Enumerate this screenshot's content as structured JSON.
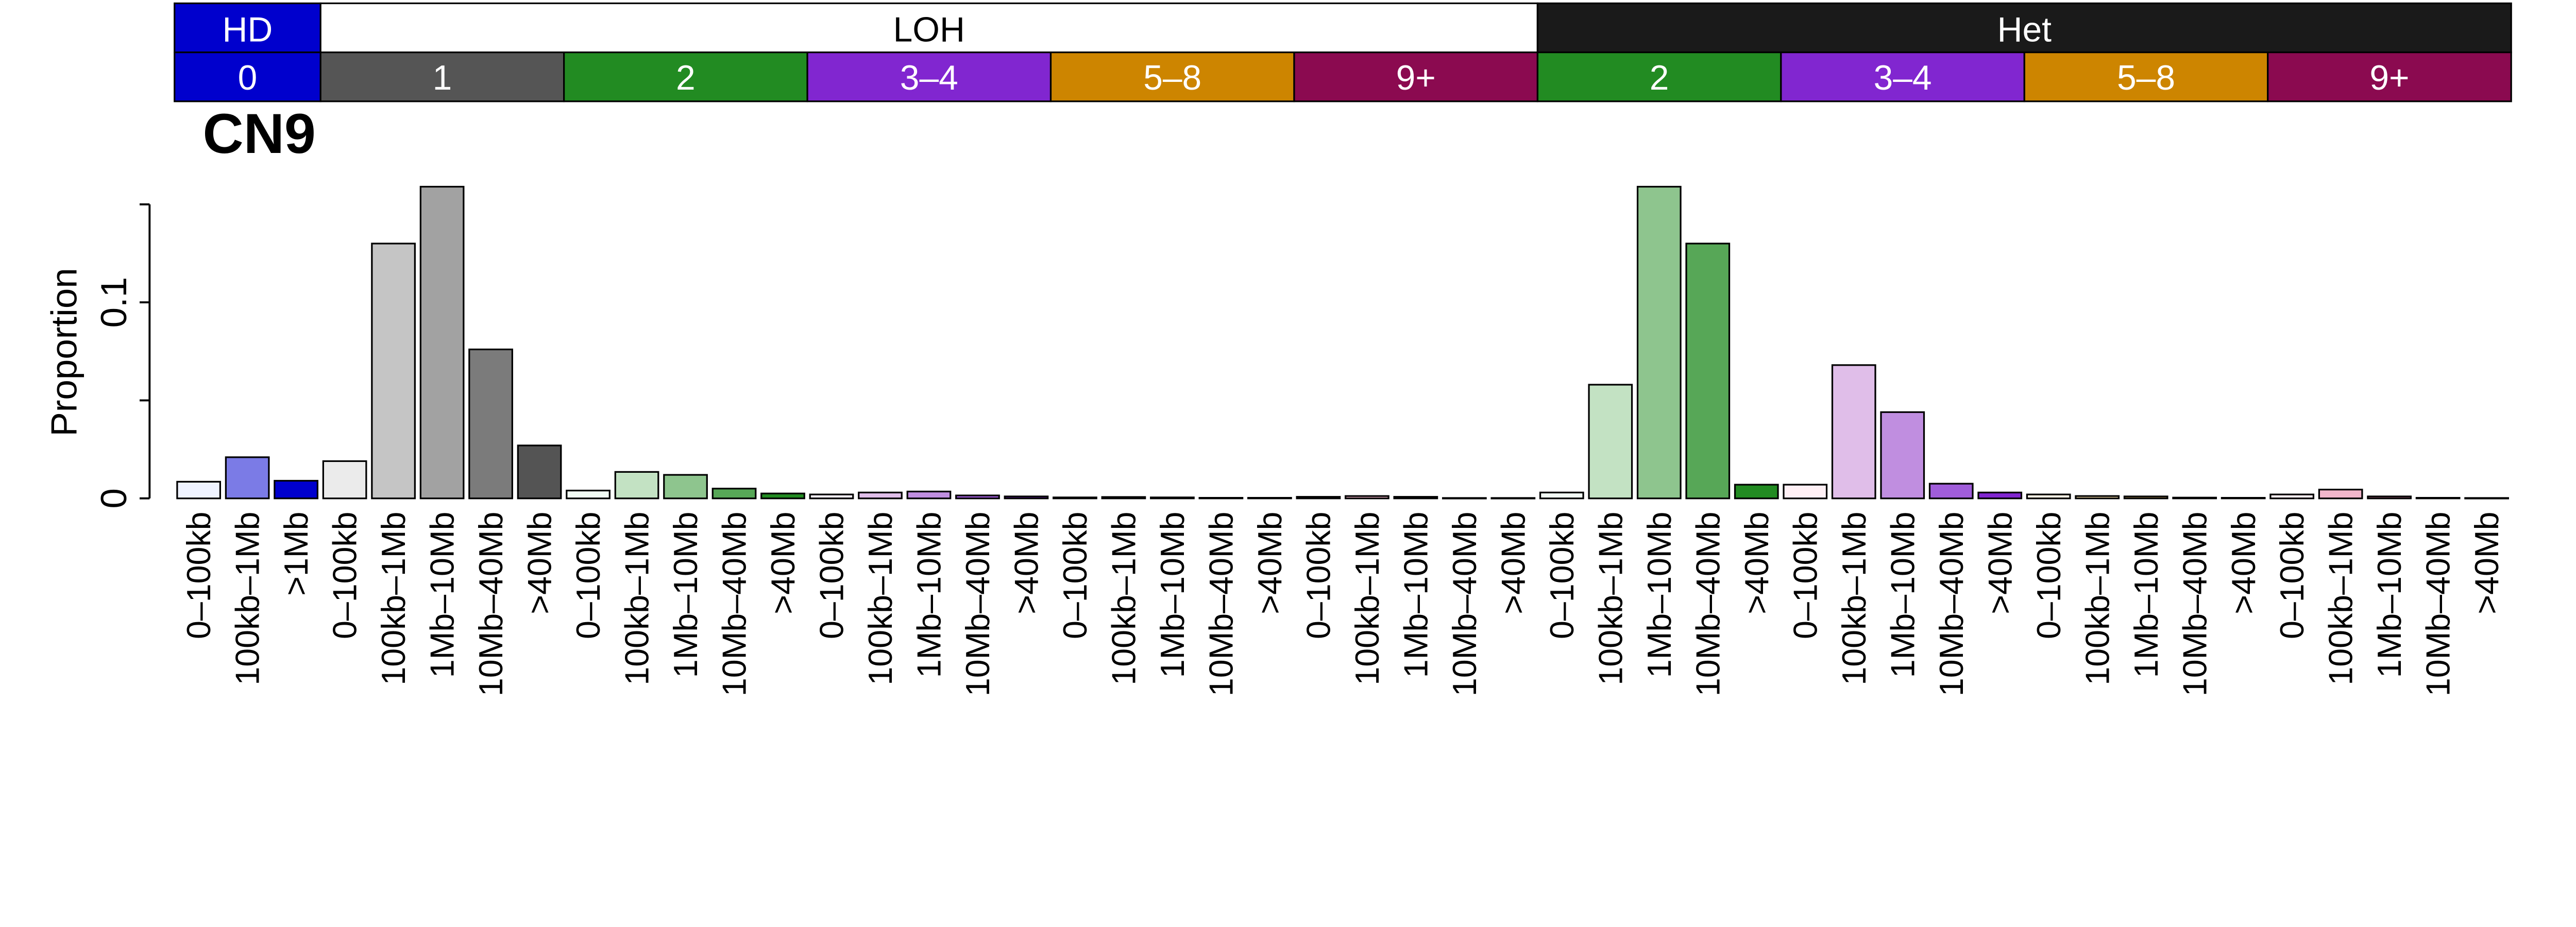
{
  "chart_data": {
    "type": "bar",
    "title": "CN9",
    "ylabel": "Proportion",
    "xlabel": "",
    "ylim": [
      0,
      0.15
    ],
    "yticks": [
      0,
      0.05,
      0.1,
      0.15
    ],
    "ytick_labels": [
      {
        "value": 0,
        "label": "0"
      },
      {
        "value": 0.1,
        "label": "0.1"
      }
    ],
    "grid": false,
    "top_groups": [
      {
        "label": "HD",
        "bars": 3,
        "color": "#0000CD",
        "text_color": "#FFFFFF"
      },
      {
        "label": "LOH",
        "bars": 25,
        "color": "#FFFFFF",
        "text_color": "#000000"
      },
      {
        "label": "Het",
        "bars": 20,
        "color": "#1A1A1A",
        "text_color": "#FFFFFF"
      }
    ],
    "cn_groups": [
      {
        "label": "0",
        "bars": 3,
        "color": "#0000CD"
      },
      {
        "label": "1",
        "bars": 5,
        "color": "#555555"
      },
      {
        "label": "2",
        "bars": 5,
        "color": "#228B22"
      },
      {
        "label": "3–4",
        "bars": 5,
        "color": "#8126D0"
      },
      {
        "label": "5–8",
        "bars": 5,
        "color": "#CD8500"
      },
      {
        "label": "9+",
        "bars": 5,
        "color": "#8B0A50"
      },
      {
        "label": "2",
        "bars": 5,
        "color": "#228B22"
      },
      {
        "label": "3–4",
        "bars": 5,
        "color": "#8126D0"
      },
      {
        "label": "5–8",
        "bars": 5,
        "color": "#CD8500"
      },
      {
        "label": "9+",
        "bars": 5,
        "color": "#8B0A50"
      }
    ],
    "categories": [
      "0–100kb",
      "100kb–1Mb",
      ">1Mb",
      "0–100kb",
      "100kb–1Mb",
      "1Mb–10Mb",
      "10Mb–40Mb",
      ">40Mb",
      "0–100kb",
      "100kb–1Mb",
      "1Mb–10Mb",
      "10Mb–40Mb",
      ">40Mb",
      "0–100kb",
      "100kb–1Mb",
      "1Mb–10Mb",
      "10Mb–40Mb",
      ">40Mb",
      "0–100kb",
      "100kb–1Mb",
      "1Mb–10Mb",
      "10Mb–40Mb",
      ">40Mb",
      "0–100kb",
      "100kb–1Mb",
      "1Mb–10Mb",
      "10Mb–40Mb",
      ">40Mb",
      "0–100kb",
      "100kb–1Mb",
      "1Mb–10Mb",
      "10Mb–40Mb",
      ">40Mb",
      "0–100kb",
      "100kb–1Mb",
      "1Mb–10Mb",
      "10Mb–40Mb",
      ">40Mb",
      "0–100kb",
      "100kb–1Mb",
      "1Mb–10Mb",
      "10Mb–40Mb",
      ">40Mb",
      "0–100kb",
      "100kb–1Mb",
      "1Mb–10Mb",
      "10Mb–40Mb",
      ">40Mb"
    ],
    "values": [
      0.0085,
      0.021,
      0.009,
      0.019,
      0.13,
      0.159,
      0.076,
      0.027,
      0.004,
      0.0135,
      0.012,
      0.005,
      0.0025,
      0.002,
      0.003,
      0.0035,
      0.0015,
      0.001,
      0.0005,
      0.0007,
      0.0005,
      0.0003,
      0.0003,
      0.0008,
      0.0012,
      0.0008,
      0.0002,
      0.0002,
      0.003,
      0.058,
      0.159,
      0.13,
      0.007,
      0.007,
      0.068,
      0.044,
      0.0075,
      0.003,
      0.002,
      0.0012,
      0.001,
      0.0004,
      0.0003,
      0.002,
      0.0045,
      0.001,
      0.0003,
      0.0002
    ],
    "bar_colors": [
      "#EFF3FF",
      "#7B7BE6",
      "#0000CD",
      "#EBEBEB",
      "#C5C5C5",
      "#A2A2A2",
      "#7B7B7B",
      "#545454",
      "#F2FCF4",
      "#C3E2C3",
      "#8EC58E",
      "#57A757",
      "#228B22",
      "#F6EEFA",
      "#E0BEE9",
      "#C08EE0",
      "#A05DDA",
      "#8126D0",
      "#FFF6E6",
      "#F5DCAA",
      "#E8BF70",
      "#DBA23A",
      "#CD8500",
      "#FFF0F5",
      "#F2B6CB",
      "#D27EA0",
      "#B04675",
      "#8B0A50",
      "#F2FCF4",
      "#C3E2C3",
      "#8EC58E",
      "#57A757",
      "#228B22",
      "#FFF0F5",
      "#E0BEE9",
      "#C08EE0",
      "#A05DDA",
      "#8126D0",
      "#FFF6E6",
      "#F5DCAA",
      "#E8BF70",
      "#DBA23A",
      "#CD8500",
      "#FFF0F5",
      "#F2B6CB",
      "#D27EA0",
      "#B04675",
      "#8B0A50"
    ]
  }
}
